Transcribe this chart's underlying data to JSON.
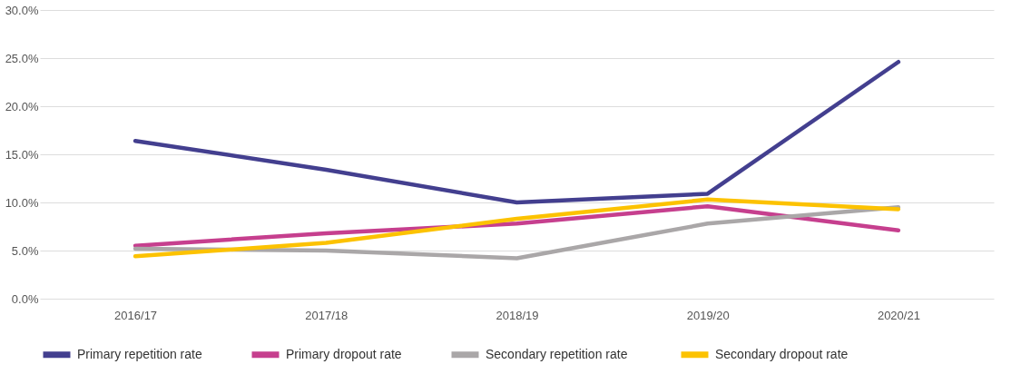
{
  "chart_data": {
    "type": "line",
    "categories": [
      "2016/17",
      "2017/18",
      "2018/19",
      "2019/20",
      "2020/21"
    ],
    "series": [
      {
        "name": "Primary repetition rate",
        "color": "#433f8f",
        "values": [
          16.4,
          13.4,
          10.0,
          10.9,
          24.6
        ]
      },
      {
        "name": "Primary dropout rate",
        "color": "#c63f8e",
        "values": [
          5.5,
          6.8,
          7.8,
          9.6,
          7.1
        ]
      },
      {
        "name": "Secondary  repetition rate",
        "color": "#aaa7a8",
        "values": [
          5.2,
          5.0,
          4.2,
          7.8,
          9.5
        ]
      },
      {
        "name": "Secondary  dropout rate",
        "color": "#fcc200",
        "values": [
          4.4,
          5.8,
          8.3,
          10.3,
          9.3
        ]
      }
    ],
    "ylim": [
      0,
      30
    ],
    "yticks": [
      {
        "value": 0,
        "label": "0.0%"
      },
      {
        "value": 5,
        "label": "5.0%"
      },
      {
        "value": 10,
        "label": "10.0%"
      },
      {
        "value": 15,
        "label": "15.0%"
      },
      {
        "value": 20,
        "label": "20.0%"
      },
      {
        "value": 25,
        "label": "25.0%"
      },
      {
        "value": 30,
        "label": "30.0%"
      }
    ],
    "grid": "y",
    "legend": "bottom",
    "marker": "none",
    "line_style": "solid"
  }
}
